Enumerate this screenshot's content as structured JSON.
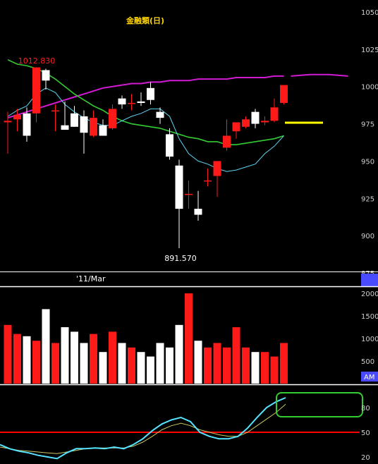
{
  "chart_title": "金融類(日)",
  "colors": {
    "background": "#000000",
    "up": "#ff1a1a",
    "down": "#ffffff",
    "ma_short": "#5fd3f3",
    "ma_mid": "#33cc33",
    "ma_long": "#d31ad3",
    "marker": "#ffff00",
    "title": "#ffd400",
    "label_high": "#ff2020",
    "label_low": "#ffffff",
    "separator": "#ffffff",
    "axis_text": "#cfcfcf",
    "stoch_k": "#55e4ff",
    "stoch_d": "#c8c864",
    "level_line": "#ff0000",
    "highlight_box": "#33cc33",
    "am_badge": "#4a4aff"
  },
  "labels": {
    "high": "1012.830",
    "low": "891.570",
    "date_marker": "'11/Mar",
    "am_badge": "AM"
  },
  "chart_data": [
    {
      "type": "candlestick",
      "title": "金融類(日)",
      "ylim": [
        875,
        1050
      ],
      "price_ticks": [
        "1050",
        "1025",
        "1000",
        "975",
        "950",
        "925",
        "900",
        "875"
      ],
      "candles": [
        {
          "o": 976,
          "h": 983,
          "l": 955,
          "c": 977
        },
        {
          "o": 978,
          "h": 985,
          "l": 970,
          "c": 981
        },
        {
          "o": 982,
          "h": 986,
          "l": 963,
          "c": 967
        },
        {
          "o": 982,
          "h": 1013,
          "l": 976,
          "c": 1012.83
        },
        {
          "o": 1011,
          "h": 1012,
          "l": 998,
          "c": 1004
        },
        {
          "o": 984,
          "h": 988,
          "l": 970,
          "c": 984
        },
        {
          "o": 974,
          "h": 990,
          "l": 971,
          "c": 971
        },
        {
          "o": 982,
          "h": 987,
          "l": 973,
          "c": 973
        },
        {
          "o": 980,
          "h": 984,
          "l": 955,
          "c": 969
        },
        {
          "o": 967,
          "h": 984,
          "l": 966,
          "c": 979
        },
        {
          "o": 974,
          "h": 978,
          "l": 967,
          "c": 967
        },
        {
          "o": 972,
          "h": 988,
          "l": 971,
          "c": 985
        },
        {
          "o": 992,
          "h": 994,
          "l": 985,
          "c": 988
        },
        {
          "o": 989,
          "h": 995,
          "l": 984,
          "c": 989
        },
        {
          "o": 990,
          "h": 996,
          "l": 987,
          "c": 989
        },
        {
          "o": 999,
          "h": 1003,
          "l": 988,
          "c": 991
        },
        {
          "o": 983,
          "h": 986,
          "l": 975,
          "c": 979
        },
        {
          "o": 968,
          "h": 972,
          "l": 951,
          "c": 953
        },
        {
          "o": 947,
          "h": 951,
          "l": 891.57,
          "c": 918
        },
        {
          "o": 928,
          "h": 937,
          "l": 918,
          "c": 928
        },
        {
          "o": 918,
          "h": 930,
          "l": 910,
          "c": 914
        },
        {
          "o": 937,
          "h": 945,
          "l": 933,
          "c": 937
        },
        {
          "o": 940,
          "h": 950,
          "l": 926,
          "c": 950
        },
        {
          "o": 959,
          "h": 978,
          "l": 957,
          "c": 967
        },
        {
          "o": 970,
          "h": 975,
          "l": 965,
          "c": 976
        },
        {
          "o": 973,
          "h": 980,
          "l": 972,
          "c": 978
        },
        {
          "o": 983,
          "h": 985,
          "l": 972,
          "c": 975
        },
        {
          "o": 976,
          "h": 980,
          "l": 974,
          "c": 977
        },
        {
          "o": 977,
          "h": 992,
          "l": 976,
          "c": 986
        },
        {
          "o": 989,
          "h": 1000,
          "l": 988,
          "c": 1001
        }
      ],
      "ma_short": [
        980,
        984,
        987,
        995,
        999,
        996,
        988,
        983,
        979,
        976,
        974,
        974,
        977,
        980,
        982,
        985,
        985,
        980,
        965,
        955,
        950,
        948,
        945,
        943,
        944,
        946,
        948,
        955,
        960,
        967
      ],
      "ma_mid": [
        1018,
        1015,
        1014,
        1012,
        1009,
        1005,
        1000,
        995,
        991,
        987,
        984,
        980,
        977,
        975,
        974,
        973,
        972,
        970,
        968,
        966,
        965,
        963,
        963,
        961,
        961,
        962,
        963,
        964,
        965,
        967
      ],
      "ma_long": [
        979,
        981,
        983,
        985,
        987,
        989,
        991,
        993,
        995,
        997,
        999,
        1000,
        1001,
        1002,
        1002,
        1003,
        1003,
        1004,
        1004,
        1004,
        1005,
        1005,
        1005,
        1005,
        1006,
        1006,
        1006,
        1006,
        1007,
        1007
      ],
      "ma_long_extension": [
        1007,
        1008,
        1008,
        1007
      ]
    },
    {
      "type": "bar",
      "ylim": [
        0,
        2000
      ],
      "volume_ticks": [
        "2000",
        "1500",
        "1000",
        "500"
      ],
      "volume": [
        1300,
        1100,
        1050,
        950,
        1650,
        900,
        1250,
        1150,
        900,
        1100,
        700,
        1150,
        900,
        800,
        700,
        600,
        900,
        800,
        1300,
        2000,
        950,
        800,
        900,
        800,
        1250,
        800,
        700,
        700,
        600,
        900
      ]
    },
    {
      "type": "line",
      "ylim": [
        20,
        100
      ],
      "stoch_ticks": [
        "80",
        "50",
        "20"
      ],
      "reference_level": 50,
      "k": [
        35,
        30,
        27,
        25,
        22,
        20,
        18,
        25,
        30,
        30,
        31,
        30,
        32,
        30,
        35,
        42,
        52,
        60,
        65,
        68,
        63,
        50,
        45,
        42,
        42,
        45,
        55,
        68,
        80,
        87,
        92
      ],
      "d": [
        32,
        30,
        28,
        27,
        26,
        25,
        24,
        26,
        28,
        30,
        31,
        31,
        31,
        31,
        33,
        38,
        45,
        53,
        58,
        61,
        58,
        53,
        50,
        47,
        45,
        45,
        50,
        58,
        66,
        74,
        84
      ]
    }
  ]
}
